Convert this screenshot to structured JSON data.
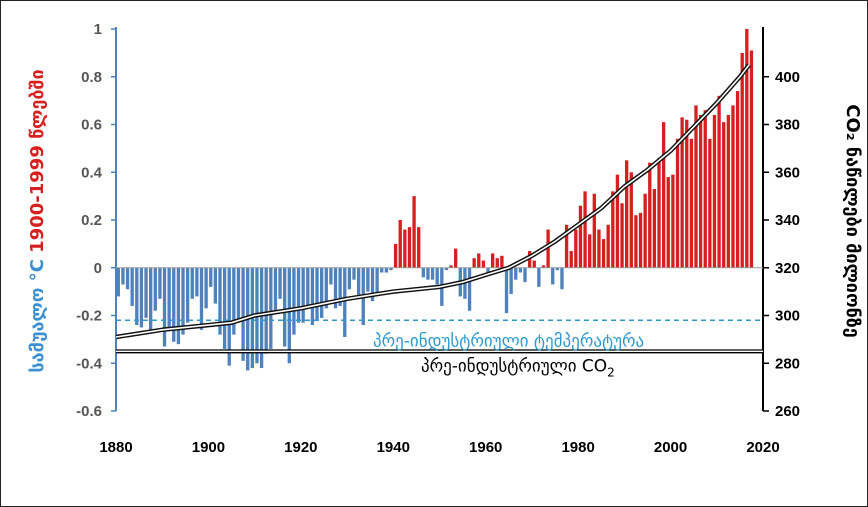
{
  "chart_data": {
    "type": "bar",
    "title": "",
    "x": {
      "range": [
        1880,
        2020
      ],
      "ticks": [
        "1880",
        "1900",
        "1920",
        "1940",
        "1960",
        "1980",
        "2000",
        "2020"
      ]
    },
    "y_left": {
      "label_part1": "სამუალო °C",
      "label_part2": "1900-1999 წლებში",
      "range": [
        -0.6,
        1.0
      ],
      "ticks": [
        "-0.6",
        "-0.4",
        "-0.2",
        "0",
        "0.2",
        "0.4",
        "0.6",
        "0.8",
        "1"
      ]
    },
    "y_right": {
      "label": "CO₂ ნაწილები მილიონზე",
      "range": [
        260,
        420
      ],
      "ticks": [
        "260",
        "280",
        "300",
        "320",
        "340",
        "360",
        "380",
        "400"
      ]
    },
    "colors": {
      "positive": "#d62020",
      "negative": "#4f81bd",
      "baseline_temp": "#2e9ad0",
      "co2": "#111111",
      "label_blue": "#3c8fd0",
      "label_red": "#d62020"
    },
    "temperature_anomaly": {
      "years": [
        1880,
        1881,
        1882,
        1883,
        1884,
        1885,
        1886,
        1887,
        1888,
        1889,
        1890,
        1891,
        1892,
        1893,
        1894,
        1895,
        1896,
        1897,
        1898,
        1899,
        1900,
        1901,
        1902,
        1903,
        1904,
        1905,
        1906,
        1907,
        1908,
        1909,
        1910,
        1911,
        1912,
        1913,
        1914,
        1915,
        1916,
        1917,
        1918,
        1919,
        1920,
        1921,
        1922,
        1923,
        1924,
        1925,
        1926,
        1927,
        1928,
        1929,
        1930,
        1931,
        1932,
        1933,
        1934,
        1935,
        1936,
        1937,
        1938,
        1939,
        1940,
        1941,
        1942,
        1943,
        1944,
        1945,
        1946,
        1947,
        1948,
        1949,
        1950,
        1951,
        1952,
        1953,
        1954,
        1955,
        1956,
        1957,
        1958,
        1959,
        1960,
        1961,
        1962,
        1963,
        1964,
        1965,
        1966,
        1967,
        1968,
        1969,
        1970,
        1971,
        1972,
        1973,
        1974,
        1975,
        1976,
        1977,
        1978,
        1979,
        1980,
        1981,
        1982,
        1983,
        1984,
        1985,
        1986,
        1987,
        1988,
        1989,
        1990,
        1991,
        1992,
        1993,
        1994,
        1995,
        1996,
        1997,
        1998,
        1999,
        2000,
        2001,
        2002,
        2003,
        2004,
        2005,
        2006,
        2007,
        2008,
        2009,
        2010,
        2011,
        2012,
        2013,
        2014,
        2015,
        2016,
        2017
      ],
      "values": [
        -0.12,
        -0.07,
        -0.09,
        -0.16,
        -0.24,
        -0.25,
        -0.21,
        -0.27,
        -0.18,
        -0.13,
        -0.33,
        -0.25,
        -0.31,
        -0.32,
        -0.28,
        -0.23,
        -0.13,
        -0.12,
        -0.26,
        -0.17,
        -0.08,
        -0.15,
        -0.28,
        -0.34,
        -0.41,
        -0.28,
        -0.22,
        -0.39,
        -0.43,
        -0.42,
        -0.4,
        -0.42,
        -0.36,
        -0.34,
        -0.18,
        -0.13,
        -0.33,
        -0.4,
        -0.28,
        -0.23,
        -0.23,
        -0.17,
        -0.24,
        -0.22,
        -0.21,
        -0.17,
        -0.07,
        -0.17,
        -0.16,
        -0.29,
        -0.09,
        -0.05,
        -0.12,
        -0.24,
        -0.1,
        -0.14,
        -0.11,
        -0.02,
        -0.02,
        -0.01,
        0.1,
        0.2,
        0.16,
        0.17,
        0.3,
        0.17,
        -0.04,
        -0.05,
        -0.05,
        -0.07,
        -0.16,
        -0.01,
        0.01,
        0.08,
        -0.12,
        -0.13,
        -0.18,
        0.04,
        0.06,
        0.03,
        -0.02,
        0.06,
        0.04,
        0.05,
        -0.19,
        -0.11,
        -0.05,
        -0.02,
        -0.06,
        0.07,
        0.03,
        -0.08,
        0.01,
        0.16,
        -0.07,
        -0.01,
        -0.09,
        0.18,
        0.07,
        0.16,
        0.26,
        0.32,
        0.14,
        0.31,
        0.16,
        0.12,
        0.18,
        0.32,
        0.39,
        0.27,
        0.45,
        0.4,
        0.22,
        0.23,
        0.31,
        0.44,
        0.33,
        0.46,
        0.61,
        0.38,
        0.39,
        0.54,
        0.63,
        0.62,
        0.54,
        0.68,
        0.64,
        0.66,
        0.54,
        0.64,
        0.72,
        0.61,
        0.64,
        0.68,
        0.74,
        0.9,
        1.0,
        0.91
      ]
    },
    "co2": {
      "years": [
        1880,
        1890,
        1900,
        1905,
        1910,
        1920,
        1930,
        1940,
        1950,
        1955,
        1960,
        1965,
        1970,
        1975,
        1980,
        1985,
        1990,
        1995,
        2000,
        2005,
        2010,
        2015,
        2017
      ],
      "values": [
        291,
        294,
        296,
        297,
        300,
        303,
        307,
        310,
        312,
        314,
        317,
        320,
        325,
        331,
        338,
        345,
        354,
        361,
        369,
        379,
        389,
        400,
        405
      ]
    },
    "baselines": {
      "temp_value": -0.22,
      "temp_label": "პრე-ინდუსტრიული ტემპერატურა",
      "co2_value": 285,
      "co2_label_main": "პრე-ინდუსტრიული CO",
      "co2_label_sub": "2"
    }
  }
}
